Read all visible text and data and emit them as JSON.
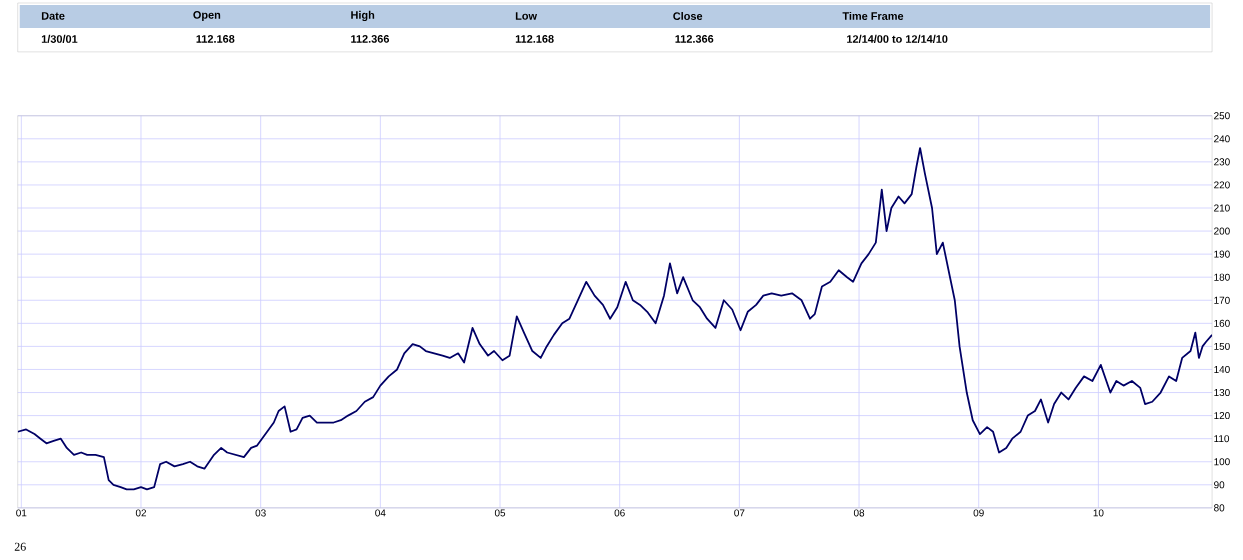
{
  "chart_data": {
    "type": "line",
    "annotations": [
      "Date",
      "Open",
      "High",
      "Low",
      "Close",
      "Time Frame",
      "1/30/01",
      "112.168",
      "112.366",
      "112.168",
      "112.366",
      "12/14/00 to   12/14/10",
      "26"
    ],
    "x": [
      "2000-12-20",
      "2001-01-15",
      "2001-02-10",
      "2001-03-01",
      "2001-03-20",
      "2001-04-10",
      "2001-05-01",
      "2001-05-20",
      "2001-06-10",
      "2001-07-01",
      "2001-07-20",
      "2001-08-15",
      "2001-09-10",
      "2001-09-25",
      "2001-10-10",
      "2001-11-01",
      "2001-11-20",
      "2001-12-10",
      "2002-01-01",
      "2002-01-20",
      "2002-02-10",
      "2002-03-01",
      "2002-03-20",
      "2002-04-15",
      "2002-05-10",
      "2002-06-01",
      "2002-06-20",
      "2002-07-15",
      "2002-08-10",
      "2002-09-01",
      "2002-09-20",
      "2002-10-15",
      "2002-11-10",
      "2002-12-01",
      "2002-12-20",
      "2003-01-15",
      "2003-02-10",
      "2003-02-25",
      "2003-03-15",
      "2003-04-01",
      "2003-04-20",
      "2003-05-10",
      "2003-06-01",
      "2003-06-20",
      "2003-07-15",
      "2003-08-10",
      "2003-09-01",
      "2003-09-25",
      "2003-10-20",
      "2003-11-15",
      "2003-12-10",
      "2004-01-01",
      "2004-01-25",
      "2004-02-20",
      "2004-03-15",
      "2004-04-10",
      "2004-05-01",
      "2004-05-20",
      "2004-06-15",
      "2004-07-10",
      "2004-08-01",
      "2004-08-25",
      "2004-09-15",
      "2004-10-10",
      "2004-11-01",
      "2004-11-25",
      "2004-12-15",
      "2005-01-10",
      "2005-02-01",
      "2005-02-20",
      "2005-03-15",
      "2005-04-10",
      "2005-05-05",
      "2005-05-25",
      "2005-06-15",
      "2005-07-10",
      "2005-08-01",
      "2005-08-25",
      "2005-09-20",
      "2005-10-15",
      "2005-11-10",
      "2005-12-01",
      "2005-12-25",
      "2006-01-20",
      "2006-02-10",
      "2006-03-05",
      "2006-03-25",
      "2006-04-20",
      "2006-05-15",
      "2006-06-05",
      "2006-06-25",
      "2006-07-15",
      "2006-08-10",
      "2006-09-01",
      "2006-09-25",
      "2006-10-20",
      "2006-11-15",
      "2006-12-10",
      "2007-01-05",
      "2007-01-25",
      "2007-02-20",
      "2007-03-15",
      "2007-04-10",
      "2007-05-10",
      "2007-06-10",
      "2007-07-10",
      "2007-08-05",
      "2007-08-20",
      "2007-09-10",
      "2007-10-05",
      "2007-11-01",
      "2007-11-25",
      "2007-12-15",
      "2008-01-10",
      "2008-02-01",
      "2008-02-20",
      "2008-03-10",
      "2008-03-25",
      "2008-04-10",
      "2008-05-01",
      "2008-05-20",
      "2008-06-10",
      "2008-06-25",
      "2008-07-05",
      "2008-07-20",
      "2008-08-10",
      "2008-08-25",
      "2008-09-15",
      "2008-10-05",
      "2008-10-20",
      "2008-11-05",
      "2008-11-25",
      "2008-12-15",
      "2009-01-05",
      "2009-01-25",
      "2009-02-15",
      "2009-03-05",
      "2009-03-25",
      "2009-04-15",
      "2009-05-10",
      "2009-06-01",
      "2009-06-20",
      "2009-07-10",
      "2009-08-01",
      "2009-08-20",
      "2009-09-10",
      "2009-10-01",
      "2009-10-25",
      "2009-11-20",
      "2009-12-15",
      "2010-01-10",
      "2010-02-05",
      "2010-02-25",
      "2010-03-20",
      "2010-04-15",
      "2010-05-10",
      "2010-05-25",
      "2010-06-15",
      "2010-07-10",
      "2010-08-05",
      "2010-08-25",
      "2010-09-15",
      "2010-10-10",
      "2010-10-25",
      "2010-11-05",
      "2010-11-15",
      "2010-11-25",
      "2010-12-12"
    ],
    "series": [
      {
        "color": "#000066",
        "values": [
          113,
          114,
          112,
          110,
          108,
          109,
          110,
          106,
          103,
          104,
          103,
          103,
          102,
          92,
          90,
          89,
          88,
          88,
          89,
          88,
          89,
          99,
          100,
          98,
          99,
          100,
          98,
          97,
          103,
          106,
          104,
          103,
          102,
          106,
          107,
          112,
          117,
          122,
          124,
          113,
          114,
          119,
          120,
          117,
          117,
          117,
          118,
          120,
          122,
          126,
          128,
          133,
          137,
          140,
          147,
          151,
          150,
          148,
          147,
          146,
          145,
          147,
          143,
          158,
          151,
          146,
          148,
          144,
          146,
          163,
          156,
          148,
          145,
          150,
          155,
          160,
          162,
          170,
          178,
          172,
          168,
          162,
          167,
          178,
          170,
          168,
          165,
          160,
          172,
          186,
          173,
          180,
          170,
          167,
          162,
          158,
          170,
          166,
          157,
          165,
          168,
          172,
          173,
          172,
          173,
          170,
          162,
          164,
          176,
          178,
          183,
          180,
          178,
          186,
          190,
          195,
          218,
          200,
          210,
          215,
          212,
          216,
          228,
          236,
          225,
          210,
          190,
          195,
          180,
          170,
          150,
          130,
          118,
          112,
          115,
          113,
          104,
          106,
          110,
          113,
          120,
          122,
          127,
          117,
          125,
          130,
          127,
          132,
          137,
          135,
          142,
          130,
          135,
          133,
          135,
          132,
          125,
          126,
          130,
          137,
          135,
          145,
          148,
          156,
          145,
          150,
          152,
          155
        ]
      }
    ],
    "xlim": [
      "2000-12-20",
      "2010-12-14"
    ],
    "xticks": [
      {
        "value": "2001-01-01",
        "label": "01"
      },
      {
        "value": "2002-01-01",
        "label": "02"
      },
      {
        "value": "2003-01-01",
        "label": "03"
      },
      {
        "value": "2004-01-01",
        "label": "04"
      },
      {
        "value": "2005-01-01",
        "label": "05"
      },
      {
        "value": "2006-01-01",
        "label": "06"
      },
      {
        "value": "2007-01-01",
        "label": "07"
      },
      {
        "value": "2008-01-01",
        "label": "08"
      },
      {
        "value": "2009-01-01",
        "label": "09"
      },
      {
        "value": "2010-01-01",
        "label": "10"
      }
    ],
    "ylim": [
      80,
      250
    ],
    "yticks": [
      80,
      90,
      100,
      110,
      120,
      130,
      140,
      150,
      160,
      170,
      180,
      190,
      200,
      210,
      220,
      230,
      240,
      250
    ],
    "grid": true,
    "line_style": "solid"
  }
}
